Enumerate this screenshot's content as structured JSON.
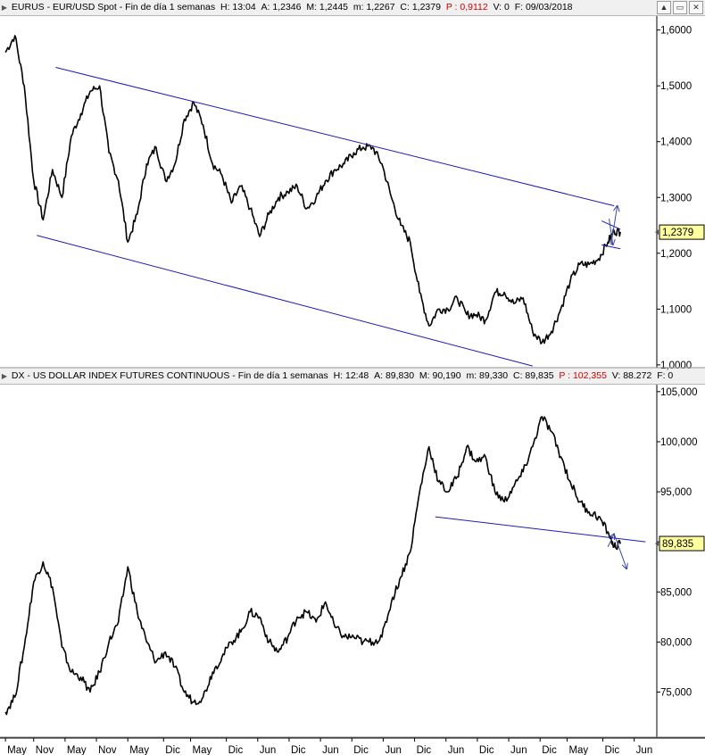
{
  "header_top": {
    "symbol": "EURUS",
    "name": "EUR/USD Spot",
    "period": "Fin de día 1 semanas",
    "h": "H: 13:04",
    "a": "A: 1,2346",
    "m": "M: 1,2445",
    "mn": "m: 1,2267",
    "c": "C: 1,2379",
    "p": "P : 0,9112",
    "v": "V: 0",
    "f": "F: 09/03/2018"
  },
  "header_bottom": {
    "symbol": "DX",
    "name": "US DOLLAR INDEX FUTURES CONTINUOUS",
    "period": "Fin de día 1 semanas",
    "h": "H: 12:48",
    "a": "A: 89,830",
    "m": "M: 90,190",
    "mn": "m: 89,330",
    "c": "C: 89,835",
    "p": "P : 102,355",
    "v": "V: 88.272",
    "f": "F: 0"
  },
  "window_buttons": {
    "expand": "▲",
    "restore": "▭",
    "close": "✕"
  },
  "colors": {
    "price": "#000000",
    "trendline": "#1c1cb4",
    "arrow": "#3c4aa0",
    "last_box": "#ffff9e"
  },
  "chart_data": [
    {
      "type": "line",
      "title": "EURUS - EUR/USD Spot",
      "ylim": [
        0.995,
        1.625
      ],
      "y_ticks": [
        "1,6000",
        "1,5000",
        "1,4000",
        "1,3000",
        "1,2000",
        "1,1000",
        "1,0000"
      ],
      "y_tick_values": [
        1.6,
        1.5,
        1.4,
        1.3,
        1.2,
        1.1,
        1.0
      ],
      "last_value": 1.2379,
      "last_label": "1,2379",
      "series": [
        {
          "x": [
            2008.4,
            2008.55,
            2008.7,
            2008.85,
            2009.0,
            2009.15,
            2009.3,
            2009.45,
            2009.6,
            2009.75,
            2009.9,
            2010.05,
            2010.2,
            2010.35,
            2010.5,
            2010.65,
            2010.8,
            2010.95,
            2011.1,
            2011.25,
            2011.4,
            2011.55,
            2011.7,
            2011.85,
            2012.0,
            2012.15,
            2012.3,
            2012.45,
            2012.6,
            2012.75,
            2012.9,
            2013.05,
            2013.2,
            2013.35,
            2013.5,
            2013.65,
            2013.8,
            2013.95,
            2014.1,
            2014.25,
            2014.4,
            2014.55,
            2014.7,
            2014.85,
            2015.0,
            2015.15,
            2015.3,
            2015.45,
            2015.6,
            2015.75,
            2015.9,
            2016.05,
            2016.2,
            2016.35,
            2016.5,
            2016.65,
            2016.8,
            2016.95,
            2017.1,
            2017.25,
            2017.4,
            2017.55,
            2017.7,
            2017.85,
            2018.0,
            2018.1,
            2018.2
          ],
          "values": [
            1.56,
            1.59,
            1.5,
            1.33,
            1.26,
            1.35,
            1.3,
            1.41,
            1.45,
            1.49,
            1.5,
            1.38,
            1.33,
            1.22,
            1.27,
            1.36,
            1.39,
            1.33,
            1.36,
            1.44,
            1.47,
            1.43,
            1.36,
            1.34,
            1.29,
            1.32,
            1.28,
            1.23,
            1.27,
            1.3,
            1.31,
            1.32,
            1.28,
            1.3,
            1.33,
            1.35,
            1.36,
            1.38,
            1.39,
            1.39,
            1.36,
            1.3,
            1.25,
            1.22,
            1.13,
            1.07,
            1.1,
            1.1,
            1.12,
            1.09,
            1.09,
            1.08,
            1.13,
            1.13,
            1.11,
            1.12,
            1.06,
            1.04,
            1.06,
            1.1,
            1.15,
            1.18,
            1.18,
            1.19,
            1.22,
            1.24,
            1.238
          ]
        }
      ],
      "trendlines": [
        {
          "x": [
            2009.2,
            2018.1
          ],
          "y": [
            1.533,
            1.285
          ]
        },
        {
          "x": [
            2008.9,
            2016.8
          ],
          "y": [
            1.232,
            0.998
          ]
        },
        {
          "x": [
            2017.9,
            2018.2
          ],
          "y": [
            1.258,
            1.243
          ]
        },
        {
          "x": [
            2017.9,
            2018.2
          ],
          "y": [
            1.215,
            1.208
          ]
        }
      ],
      "arrows": [
        {
          "x": [
            2018.05,
            2018.15
          ],
          "y": [
            1.215,
            1.285
          ]
        },
        {
          "x": [
            2018.02,
            2018.08
          ],
          "y": [
            1.262,
            1.215
          ]
        }
      ]
    },
    {
      "type": "line",
      "title": "DX - US DOLLAR INDEX FUTURES CONTINUOUS",
      "ylim": [
        70.5,
        105.7
      ],
      "y_ticks": [
        "105,000",
        "100,000",
        "95,000",
        "90,000",
        "85,000",
        "80,000",
        "75,000"
      ],
      "y_tick_values": [
        105,
        100,
        95,
        90,
        85,
        80,
        75
      ],
      "last_value": 89.835,
      "last_label": "89,835",
      "series": [
        {
          "x": [
            2008.4,
            2008.55,
            2008.7,
            2008.85,
            2009.0,
            2009.15,
            2009.3,
            2009.45,
            2009.6,
            2009.75,
            2009.9,
            2010.05,
            2010.2,
            2010.35,
            2010.5,
            2010.65,
            2010.8,
            2010.95,
            2011.1,
            2011.25,
            2011.4,
            2011.55,
            2011.7,
            2011.85,
            2012.0,
            2012.15,
            2012.3,
            2012.45,
            2012.6,
            2012.75,
            2012.9,
            2013.05,
            2013.2,
            2013.35,
            2013.5,
            2013.65,
            2013.8,
            2013.95,
            2014.1,
            2014.25,
            2014.4,
            2014.55,
            2014.7,
            2014.85,
            2015.0,
            2015.15,
            2015.3,
            2015.45,
            2015.6,
            2015.75,
            2015.9,
            2016.05,
            2016.2,
            2016.35,
            2016.5,
            2016.65,
            2016.8,
            2016.95,
            2017.1,
            2017.25,
            2017.4,
            2017.55,
            2017.7,
            2017.85,
            2018.0,
            2018.1,
            2018.2
          ],
          "values": [
            73.0,
            74.5,
            79.5,
            86.0,
            88.0,
            85.5,
            79.5,
            77.0,
            76.5,
            75.0,
            77.0,
            80.0,
            82.0,
            87.5,
            83.0,
            80.0,
            78.0,
            79.0,
            77.5,
            75.0,
            74.0,
            74.5,
            77.0,
            78.5,
            80.0,
            81.0,
            83.0,
            82.5,
            80.0,
            79.0,
            80.5,
            82.5,
            83.0,
            82.0,
            84.0,
            81.5,
            80.5,
            80.5,
            80.0,
            80.0,
            80.5,
            84.0,
            86.5,
            89.0,
            95.0,
            99.5,
            96.0,
            95.0,
            96.5,
            99.5,
            98.0,
            98.5,
            95.0,
            94.0,
            95.5,
            97.0,
            99.5,
            102.5,
            101.0,
            98.5,
            96.0,
            94.0,
            93.0,
            92.5,
            91.0,
            89.5,
            89.8
          ]
        }
      ],
      "trendlines": [
        {
          "x": [
            2015.25,
            2018.6
          ],
          "y": [
            92.5,
            90.0
          ]
        }
      ],
      "arrows": [
        {
          "x": [
            2018.0,
            2018.1
          ],
          "y": [
            89.5,
            90.8
          ]
        },
        {
          "x": [
            2018.1,
            2018.3
          ],
          "y": [
            90.8,
            87.3
          ]
        }
      ]
    }
  ],
  "x_axis": {
    "ticks": [
      "May",
      "Nov",
      "May",
      "Nov",
      "May",
      "Dic",
      "May",
      "Dic",
      "Jun",
      "Dic",
      "Jun",
      "Dic",
      "Jun",
      "Dic",
      "Jun",
      "Dic",
      "Jun",
      "Dic",
      "May",
      "Dic",
      "Jun"
    ],
    "tick_x": [
      2008.4,
      2008.85,
      2009.35,
      2009.85,
      2010.35,
      2010.92,
      2011.35,
      2011.92,
      2012.42,
      2012.92,
      2013.42,
      2013.92,
      2014.42,
      2014.92,
      2015.42,
      2015.92,
      2016.42,
      2016.92,
      2017.35,
      2017.92,
      2018.42
    ]
  }
}
